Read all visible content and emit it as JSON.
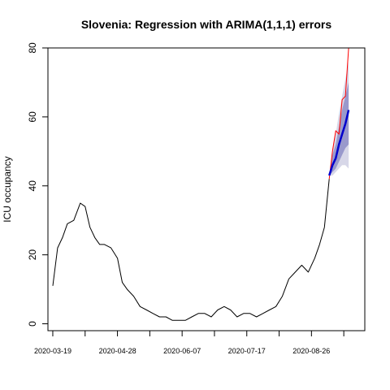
{
  "chart_data": {
    "type": "line",
    "title": "Slovenia: Regression with ARIMA(1,1,1) errors",
    "xlabel": "",
    "ylabel": "ICU occupancy",
    "x_tick_labels": [
      "2020-03-19",
      "2020-04-28",
      "2020-06-07",
      "2020-07-17",
      "2020-08-26"
    ],
    "x_tick_dates": [
      "2020-03-19",
      "2020-04-08",
      "2020-04-28",
      "2020-05-18",
      "2020-06-07",
      "2020-06-27",
      "2020-07-17",
      "2020-08-06",
      "2020-08-26",
      "2020-09-15"
    ],
    "xlim": [
      "2020-03-16",
      "2020-09-28"
    ],
    "ylim": [
      -2,
      80
    ],
    "y_ticks": [
      0,
      20,
      40,
      60,
      80
    ],
    "grid": false,
    "colors": {
      "history": "#000000",
      "actual_after_start": "#ff0000",
      "forecast": "#0000cc",
      "interval_80": "#9999cc",
      "interval_95": "#d7d7e8"
    },
    "history": {
      "x": [
        "2020-03-19",
        "2020-03-22",
        "2020-03-25",
        "2020-03-28",
        "2020-04-01",
        "2020-04-05",
        "2020-04-08",
        "2020-04-11",
        "2020-04-14",
        "2020-04-17",
        "2020-04-20",
        "2020-04-24",
        "2020-04-28",
        "2020-05-01",
        "2020-05-04",
        "2020-05-08",
        "2020-05-12",
        "2020-05-16",
        "2020-05-20",
        "2020-05-24",
        "2020-05-28",
        "2020-06-01",
        "2020-06-05",
        "2020-06-09",
        "2020-06-13",
        "2020-06-17",
        "2020-06-21",
        "2020-06-25",
        "2020-06-29",
        "2020-07-03",
        "2020-07-07",
        "2020-07-11",
        "2020-07-15",
        "2020-07-19",
        "2020-07-23",
        "2020-07-27",
        "2020-07-31",
        "2020-08-04",
        "2020-08-08",
        "2020-08-12",
        "2020-08-16",
        "2020-08-20",
        "2020-08-24",
        "2020-08-28",
        "2020-08-31",
        "2020-09-03",
        "2020-09-06"
      ],
      "y": [
        11,
        22,
        25,
        29,
        30,
        35,
        34,
        28,
        25,
        23,
        23,
        22,
        19,
        12,
        10,
        8,
        5,
        4,
        3,
        2,
        2,
        1,
        1,
        1,
        2,
        3,
        3,
        2,
        4,
        5,
        4,
        2,
        3,
        3,
        2,
        3,
        4,
        5,
        8,
        13,
        15,
        17,
        15,
        19,
        23,
        28,
        42
      ]
    },
    "actual_after_start": {
      "x": [
        "2020-09-06",
        "2020-09-08",
        "2020-09-10",
        "2020-09-12",
        "2020-09-14",
        "2020-09-16",
        "2020-09-18"
      ],
      "y": [
        42,
        50,
        56,
        55,
        65,
        66,
        80
      ]
    },
    "forecast": {
      "x": [
        "2020-09-06",
        "2020-09-08",
        "2020-09-10",
        "2020-09-12",
        "2020-09-14",
        "2020-09-16",
        "2020-09-18"
      ],
      "y": [
        43,
        46,
        48,
        52,
        55,
        58,
        62
      ]
    },
    "interval_80": {
      "x": [
        "2020-09-06",
        "2020-09-08",
        "2020-09-10",
        "2020-09-12",
        "2020-09-14",
        "2020-09-16",
        "2020-09-18"
      ],
      "lower": [
        43,
        44,
        45,
        47,
        49,
        51,
        52
      ],
      "upper": [
        43,
        49,
        52,
        57,
        62,
        66,
        70
      ]
    },
    "interval_95": {
      "x": [
        "2020-09-06",
        "2020-09-08",
        "2020-09-10",
        "2020-09-12",
        "2020-09-14",
        "2020-09-16",
        "2020-09-18"
      ],
      "lower": [
        43,
        43,
        44,
        45,
        46,
        46,
        45
      ],
      "upper": [
        43,
        51,
        55,
        61,
        66,
        71,
        76
      ]
    }
  }
}
